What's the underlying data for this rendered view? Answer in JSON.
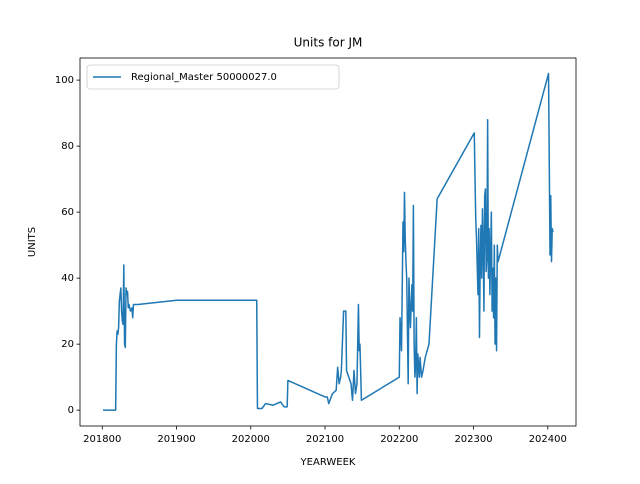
{
  "chart_data": {
    "type": "line",
    "title": "Units for JM",
    "xlabel": "YEARWEEK",
    "ylabel": "UNITS",
    "x": [
      201801,
      201818,
      201819,
      201820,
      201821,
      201822,
      201823,
      201824,
      201825,
      201826,
      201827,
      201828,
      201829,
      201830,
      201831,
      201832,
      201833,
      201834,
      201835,
      201836,
      201838,
      201840,
      201841,
      201842,
      201848,
      201900,
      202008,
      202009,
      202015,
      202020,
      202030,
      202040,
      202045,
      202049,
      202050,
      202100,
      202103,
      202105,
      202110,
      202115,
      202117,
      202119,
      202121,
      202122,
      202125,
      202128,
      202129,
      202132,
      202135,
      202137,
      202139,
      202141,
      202143,
      202145,
      202146,
      202147,
      202149,
      202200,
      202201,
      202203,
      202205,
      202206,
      202207,
      202208,
      202209,
      202210,
      202212,
      202213,
      202215,
      202217,
      202218,
      202219,
      202220,
      202221,
      202222,
      202223,
      202224,
      202225,
      202227,
      202228,
      202230,
      202232,
      202235,
      202240,
      202251,
      202301,
      202302,
      202303,
      202304,
      202306,
      202307,
      202308,
      202309,
      202310,
      202311,
      202312,
      202313,
      202314,
      202315,
      202316,
      202317,
      202318,
      202319,
      202320,
      202321,
      202322,
      202323,
      202324,
      202325,
      202326,
      202327,
      202328,
      202329,
      202330,
      202331,
      202332,
      202333,
      202401,
      202402,
      202403,
      202404,
      202405,
      202406,
      202407
    ],
    "series": [
      {
        "name": "Regional_Master 50000027.0",
        "color": "#1f77b4",
        "values": [
          0,
          0,
          20,
          24,
          23,
          25,
          33,
          35,
          37,
          30,
          27,
          26,
          44,
          20,
          19,
          37,
          35,
          36,
          31,
          32,
          30,
          31,
          28,
          32,
          32,
          33.3,
          33.3,
          0.5,
          0.5,
          2,
          1.5,
          2.5,
          1,
          1,
          9,
          4,
          4,
          2,
          5,
          6,
          13,
          8,
          10,
          12,
          30,
          30,
          12,
          10,
          8,
          3,
          12,
          5,
          8,
          32,
          18,
          20,
          3,
          10,
          28,
          18,
          57,
          48,
          66,
          52,
          45,
          40,
          8,
          40,
          25,
          38,
          30,
          62,
          20,
          10,
          14,
          28,
          5,
          17,
          10,
          16,
          10,
          12,
          16,
          20,
          64,
          84,
          70,
          58,
          52,
          35,
          55,
          22,
          45,
          56,
          40,
          61,
          50,
          30,
          65,
          67,
          42,
          46,
          88,
          40,
          55,
          35,
          48,
          60,
          30,
          43,
          28,
          50,
          20,
          40,
          18,
          50,
          45,
          102,
          75,
          47,
          65,
          45,
          55,
          54
        ]
      }
    ],
    "xlim": [
      201770,
      202438
    ],
    "ylim": [
      -4.8,
      106.7
    ],
    "xticks": [
      201800,
      201900,
      202000,
      202100,
      202200,
      202300,
      202400
    ],
    "yticks": [
      0,
      20,
      40,
      60,
      80,
      100
    ],
    "legend": "upper left"
  }
}
